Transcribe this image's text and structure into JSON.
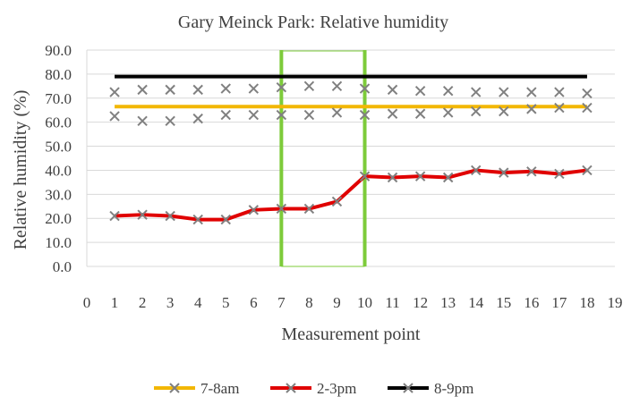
{
  "chart_data": {
    "type": "line",
    "title": "Gary Meinck Park: Relative humidity",
    "xlabel": "Measurement point",
    "ylabel": "Relative humidity (%)",
    "xlim": [
      0,
      19
    ],
    "ylim": [
      0,
      90
    ],
    "x_ticks": [
      "0",
      "1",
      "2",
      "3",
      "4",
      "5",
      "6",
      "7",
      "8",
      "9",
      "10",
      "11",
      "12",
      "13",
      "14",
      "15",
      "16",
      "17",
      "18",
      "19"
    ],
    "y_ticks": [
      "0.0",
      "10.0",
      "20.0",
      "30.0",
      "40.0",
      "50.0",
      "60.0",
      "70.0",
      "80.0",
      "90.0"
    ],
    "grid": "horizontal",
    "legend_position": "bottom",
    "highlight_lines_x": [
      7,
      10
    ],
    "highlight_color": "#7DCB3A",
    "x": [
      1,
      2,
      3,
      4,
      5,
      6,
      7,
      8,
      9,
      10,
      11,
      12,
      13,
      14,
      15,
      16,
      17,
      18
    ],
    "series": [
      {
        "name": "7-8am",
        "color": "#F2B705",
        "line_values": [
          66.5,
          66.5,
          66.5,
          66.5,
          66.5,
          66.5,
          66.5,
          66.5,
          66.5,
          66.5,
          66.5,
          66.5,
          66.5,
          66.5,
          66.5,
          66.5,
          66.5,
          66.5
        ],
        "marker_values": [
          62.5,
          60.5,
          60.5,
          61.5,
          63,
          63,
          63,
          63,
          64,
          63,
          63.5,
          63.5,
          64,
          64.5,
          64.5,
          65.5,
          66,
          66
        ]
      },
      {
        "name": "2-3pm",
        "color": "#E00000",
        "line_values": [
          21,
          21.5,
          21,
          19.5,
          19.5,
          23.5,
          24,
          24,
          27,
          37.5,
          37,
          37.5,
          37,
          40,
          39,
          39.5,
          38.5,
          40
        ],
        "marker_values": [
          21,
          21.5,
          21,
          19.5,
          19.5,
          23.5,
          24,
          24,
          27,
          37.5,
          37,
          37.5,
          37,
          40,
          39,
          39.5,
          38.5,
          40
        ]
      },
      {
        "name": "8-9pm",
        "color": "#000000",
        "line_values": [
          79,
          79,
          79,
          79,
          79,
          79,
          79,
          79,
          79,
          79,
          79,
          79,
          79,
          79,
          79,
          79,
          79,
          79
        ],
        "marker_values": [
          72.5,
          73.5,
          73.5,
          73.5,
          74,
          74,
          74.5,
          75,
          75,
          74,
          73.5,
          73,
          73,
          72.5,
          72.5,
          72.5,
          72.5,
          72
        ]
      }
    ]
  }
}
